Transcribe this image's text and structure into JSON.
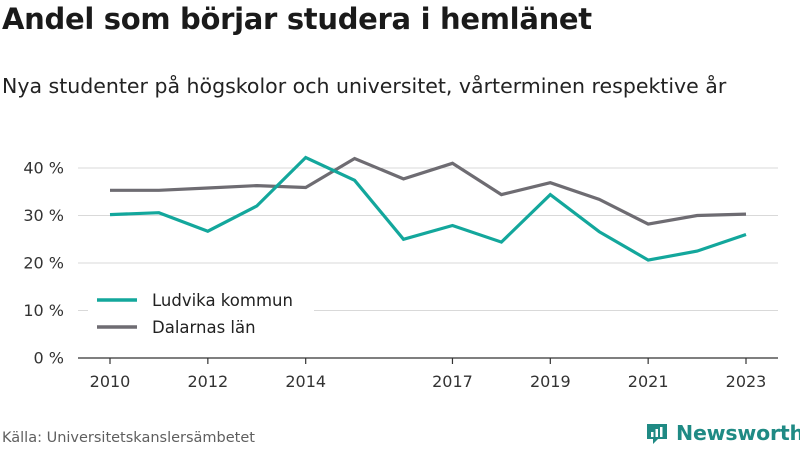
{
  "title": "Andel som börjar studera i hemlänet",
  "subtitle": "Nya studenter på högskolor och universitet, vårterminen respektive år",
  "source": "Källa: Universitetskanslersämbetet",
  "brand": "Newsworthy",
  "colors": {
    "ludvika": "#13a79c",
    "dalarna": "#6e6c72",
    "brand": "#1f8a84"
  },
  "chart_data": {
    "type": "line",
    "title": "Andel som börjar studera i hemlänet",
    "subtitle": "Nya studenter på högskolor och universitet, vårterminen respektive år",
    "x": [
      2010,
      2011,
      2012,
      2013,
      2014,
      2015,
      2016,
      2017,
      2018,
      2019,
      2020,
      2021,
      2022,
      2023
    ],
    "x_tick_labels": [
      "2010",
      "2012",
      "2014",
      "2017",
      "2019",
      "2021",
      "2023"
    ],
    "y_ticks": [
      0,
      10,
      20,
      30,
      40
    ],
    "y_tick_labels": [
      "0 %",
      "10 %",
      "20 %",
      "30 %",
      "40 %"
    ],
    "ylim": [
      0,
      45
    ],
    "grid": true,
    "legend_position": "bottom-left",
    "series": [
      {
        "name": "Ludvika kommun",
        "color": "#13a79c",
        "values": [
          30.2,
          30.6,
          26.7,
          32.0,
          42.2,
          37.4,
          25.0,
          27.9,
          24.4,
          34.4,
          26.6,
          20.6,
          22.5,
          26.0
        ]
      },
      {
        "name": "Dalarnas län",
        "color": "#6e6c72",
        "values": [
          35.3,
          35.3,
          35.8,
          36.3,
          35.9,
          42.0,
          37.7,
          41.0,
          34.4,
          36.9,
          33.4,
          28.2,
          30.0,
          30.3
        ]
      }
    ]
  }
}
